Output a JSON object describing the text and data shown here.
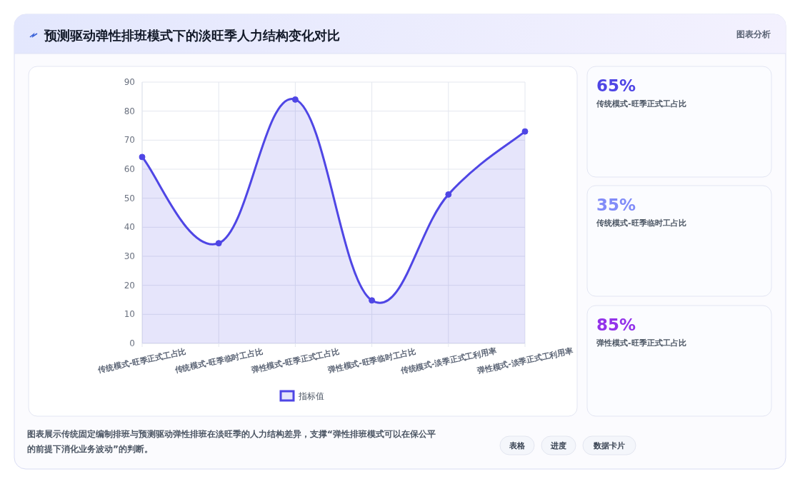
{
  "chart_data": [
    {
      "type": "area",
      "title": "预测驱动弹性排班模式下的淡旺季人力结构变化对比",
      "categories": [
        "传统模式-旺季正式工占比",
        "传统模式-旺季临时工占比",
        "弹性模式-旺季正式工占比",
        "弹性模式-旺季临时工占比",
        "传统模式-淡季正式工利用率",
        "弹性模式-淡季正式工利用率"
      ],
      "series": [
        {
          "name": "指标值",
          "color": "#4f46e5",
          "values": [
            64.2,
            34.5,
            84,
            14.8,
            51.3,
            73
          ]
        }
      ],
      "ylim": [
        0,
        90
      ],
      "yticks": [
        0,
        10,
        20,
        30,
        40,
        50,
        60,
        70,
        80,
        90
      ],
      "grid": true,
      "legend": "bottom",
      "marker": "circle",
      "line_style": "solid",
      "annotations": [
        "图表展示传统固定编制排班与预测驱动弹性排班在淡旺季的人力结构差异，支撑“弹性排班模式可以在保公平的前提下消化业务波动”的判断。",
        "表格",
        "进度",
        "数据卡片"
      ]
    },
    {
      "type": "other",
      "subtitle": "图表分析",
      "colors": [
        "#4f46e5",
        "#818cf8",
        "#9333ea"
      ],
      "annotations": [
        "65%",
        "传统模式-旺季正式工占比",
        "35%",
        "传统模式-旺季临时工占比",
        "85%",
        "弹性模式-旺季正式工占比"
      ]
    }
  ]
}
